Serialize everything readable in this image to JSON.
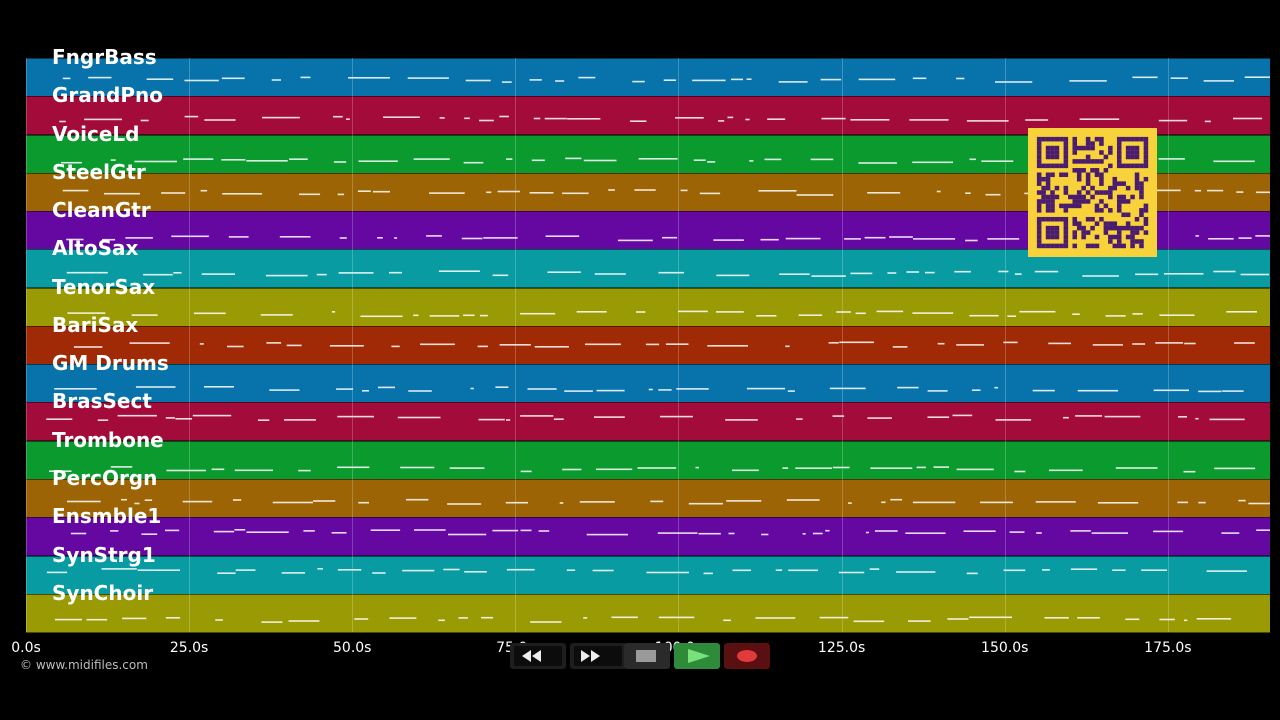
{
  "tracks": [
    {
      "name": "FngrBass",
      "color": "#0773aa"
    },
    {
      "name": "GrandPno",
      "color": "#a20b3a"
    },
    {
      "name": "VoiceLd",
      "color": "#0a9a2e"
    },
    {
      "name": "SteelGtr",
      "color": "#9c6404"
    },
    {
      "name": "CleanGtr",
      "color": "#6508a2"
    },
    {
      "name": "AltoSax",
      "color": "#099ba2"
    },
    {
      "name": "TenorSax",
      "color": "#9a9a05"
    },
    {
      "name": "BariSax",
      "color": "#a12a06"
    },
    {
      "name": "GM Drums",
      "color": "#0773aa"
    },
    {
      "name": "BrasSect",
      "color": "#a20b3a"
    },
    {
      "name": "Trombone",
      "color": "#0a9a2e"
    },
    {
      "name": "PercOrgn",
      "color": "#9c6404"
    },
    {
      "name": "Ensmble1",
      "color": "#6508a2"
    },
    {
      "name": "SynStrg1",
      "color": "#099ba2"
    },
    {
      "name": "SynChoir",
      "color": "#9a9a05"
    }
  ],
  "timeline": {
    "ticks": [
      "0.0s",
      "25.0s",
      "50.0s",
      "75.0s",
      "100.0s",
      "125.0s",
      "150.0s",
      "175.0s"
    ],
    "tick_seconds": [
      0,
      25,
      50,
      75,
      100,
      125,
      150,
      175
    ]
  },
  "copyright": "© www.midifiles.com",
  "qr": {
    "background": "#f7d23a",
    "foreground": "#4a1c6e"
  },
  "transport": {
    "buttons": [
      {
        "name": "rewind",
        "icon": "rewind-icon"
      },
      {
        "name": "fast-forward",
        "icon": "fast-forward-icon"
      },
      {
        "name": "stop",
        "icon": "stop-icon"
      },
      {
        "name": "play",
        "icon": "play-icon",
        "color": "#2e8b3a"
      },
      {
        "name": "record",
        "icon": "record-icon",
        "color": "#8b1a1a"
      }
    ]
  }
}
